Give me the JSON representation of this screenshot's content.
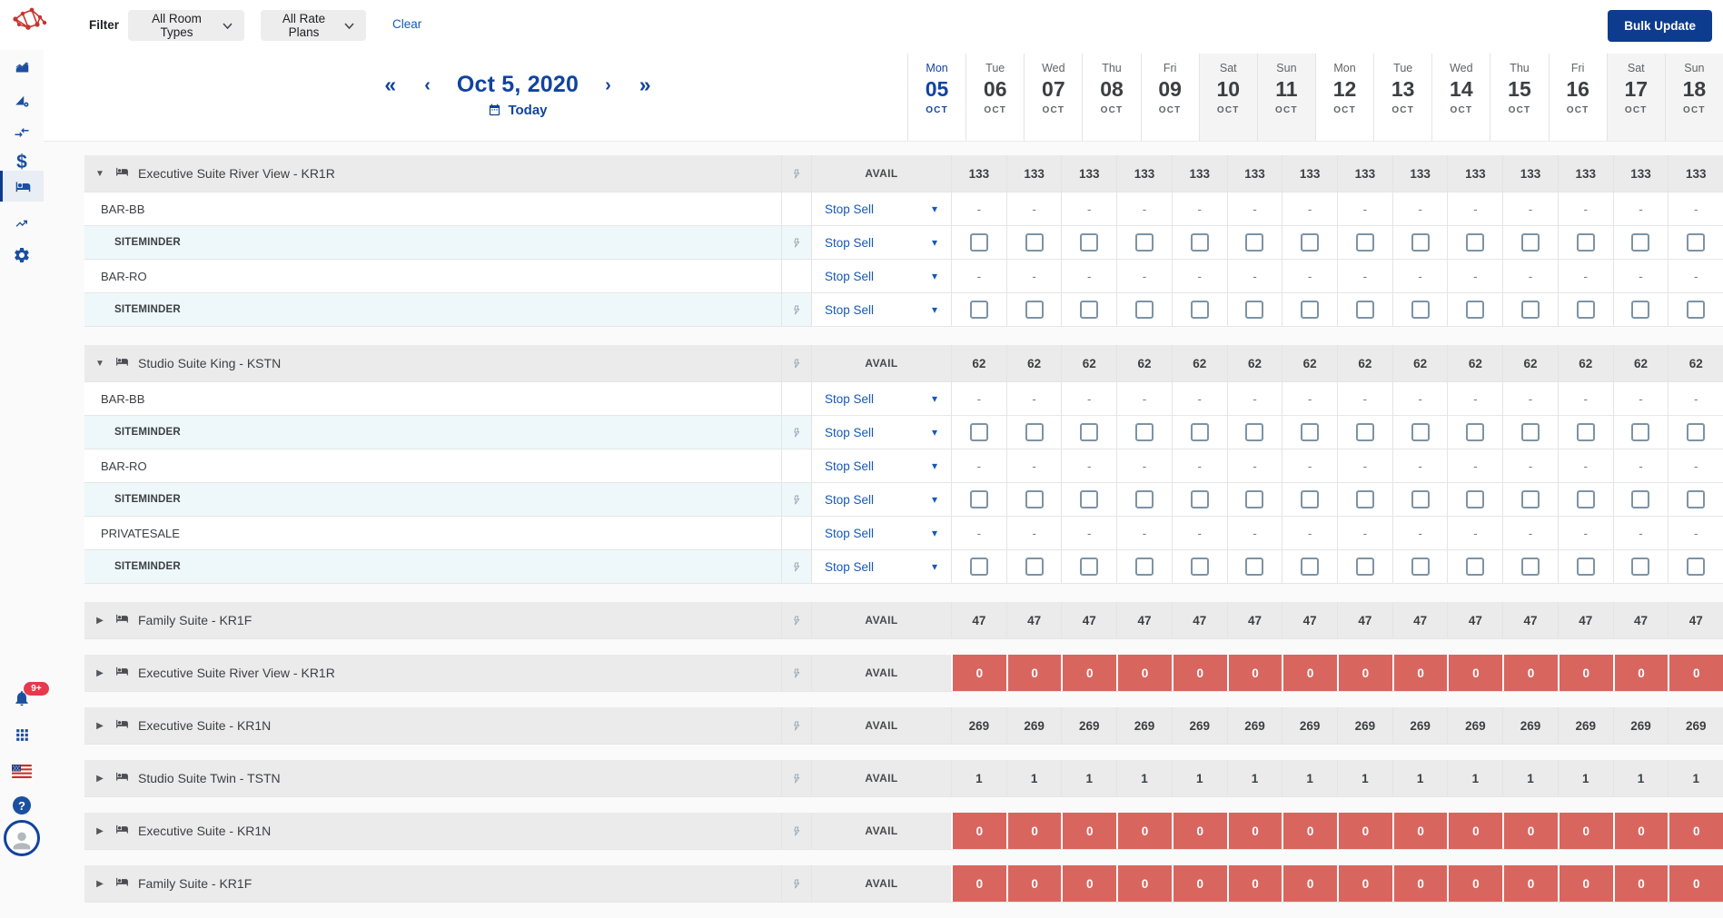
{
  "topbar": {
    "filter_label": "Filter",
    "room_types_filter": "All Room Types",
    "rate_plans_filter": "All Rate Plans",
    "clear_label": "Clear",
    "bulk_update_label": "Bulk Update"
  },
  "date_nav": {
    "current_date": "Oct 5, 2020",
    "today_label": "Today",
    "fast_back_glyph": "«",
    "back_glyph": "‹",
    "forward_glyph": "›",
    "fast_forward_glyph": "»"
  },
  "columns": {
    "avail_label": "AVAIL",
    "stop_sell_label": "Stop Sell",
    "empty_value": "-",
    "caret_down_glyph": "▾"
  },
  "dates": [
    {
      "dow": "Mon",
      "day": "05",
      "month": "OCT",
      "weekend": false,
      "selected": true
    },
    {
      "dow": "Tue",
      "day": "06",
      "month": "OCT",
      "weekend": false,
      "selected": false
    },
    {
      "dow": "Wed",
      "day": "07",
      "month": "OCT",
      "weekend": false,
      "selected": false
    },
    {
      "dow": "Thu",
      "day": "08",
      "month": "OCT",
      "weekend": false,
      "selected": false
    },
    {
      "dow": "Fri",
      "day": "09",
      "month": "OCT",
      "weekend": false,
      "selected": false
    },
    {
      "dow": "Sat",
      "day": "10",
      "month": "OCT",
      "weekend": true,
      "selected": false
    },
    {
      "dow": "Sun",
      "day": "11",
      "month": "OCT",
      "weekend": true,
      "selected": false
    },
    {
      "dow": "Mon",
      "day": "12",
      "month": "OCT",
      "weekend": false,
      "selected": false
    },
    {
      "dow": "Tue",
      "day": "13",
      "month": "OCT",
      "weekend": false,
      "selected": false
    },
    {
      "dow": "Wed",
      "day": "14",
      "month": "OCT",
      "weekend": false,
      "selected": false
    },
    {
      "dow": "Thu",
      "day": "15",
      "month": "OCT",
      "weekend": false,
      "selected": false
    },
    {
      "dow": "Fri",
      "day": "16",
      "month": "OCT",
      "weekend": false,
      "selected": false
    },
    {
      "dow": "Sat",
      "day": "17",
      "month": "OCT",
      "weekend": true,
      "selected": false
    },
    {
      "dow": "Sun",
      "day": "18",
      "month": "OCT",
      "weekend": true,
      "selected": false
    }
  ],
  "groups": [
    {
      "name": "Executive Suite River View - KR1R",
      "expanded": true,
      "sold_out": false,
      "avail_values": [
        133,
        133,
        133,
        133,
        133,
        133,
        133,
        133,
        133,
        133,
        133,
        133,
        133,
        133
      ],
      "rate_plans": [
        {
          "name": "BAR-BB",
          "channels": [
            "SITEMINDER"
          ]
        },
        {
          "name": "BAR-RO",
          "channels": [
            "SITEMINDER"
          ]
        }
      ]
    },
    {
      "name": "Studio Suite King - KSTN",
      "expanded": true,
      "sold_out": false,
      "avail_values": [
        62,
        62,
        62,
        62,
        62,
        62,
        62,
        62,
        62,
        62,
        62,
        62,
        62,
        62
      ],
      "rate_plans": [
        {
          "name": "BAR-BB",
          "channels": [
            "SITEMINDER"
          ]
        },
        {
          "name": "BAR-RO",
          "channels": [
            "SITEMINDER"
          ]
        },
        {
          "name": "PRIVATESALE",
          "channels": [
            "SITEMINDER"
          ]
        }
      ]
    },
    {
      "name": "Family Suite - KR1F",
      "expanded": false,
      "sold_out": false,
      "avail_values": [
        47,
        47,
        47,
        47,
        47,
        47,
        47,
        47,
        47,
        47,
        47,
        47,
        47,
        47
      ],
      "rate_plans": []
    },
    {
      "name": "Executive Suite River View - KR1R",
      "expanded": false,
      "sold_out": true,
      "avail_values": [
        0,
        0,
        0,
        0,
        0,
        0,
        0,
        0,
        0,
        0,
        0,
        0,
        0,
        0
      ],
      "rate_plans": []
    },
    {
      "name": "Executive Suite - KR1N",
      "expanded": false,
      "sold_out": false,
      "avail_values": [
        269,
        269,
        269,
        269,
        269,
        269,
        269,
        269,
        269,
        269,
        269,
        269,
        269,
        269
      ],
      "rate_plans": []
    },
    {
      "name": "Studio Suite Twin - TSTN",
      "expanded": false,
      "sold_out": false,
      "avail_values": [
        1,
        1,
        1,
        1,
        1,
        1,
        1,
        1,
        1,
        1,
        1,
        1,
        1,
        1
      ],
      "rate_plans": []
    },
    {
      "name": "Executive Suite - KR1N",
      "expanded": false,
      "sold_out": true,
      "avail_values": [
        0,
        0,
        0,
        0,
        0,
        0,
        0,
        0,
        0,
        0,
        0,
        0,
        0,
        0
      ],
      "rate_plans": []
    },
    {
      "name": "Family Suite - KR1F",
      "expanded": false,
      "sold_out": true,
      "avail_values": [
        0,
        0,
        0,
        0,
        0,
        0,
        0,
        0,
        0,
        0,
        0,
        0,
        0,
        0
      ],
      "rate_plans": []
    }
  ],
  "sidebar": {
    "notifications_badge": "9+",
    "help_glyph": "?",
    "dollar_glyph": "$",
    "items_top": [
      "dashboard-chart",
      "rate-analytics",
      "channel-sync",
      "pricing",
      "inventory-calendar",
      "trends",
      "settings"
    ],
    "items_bottom": [
      "notifications",
      "apps",
      "language-us",
      "help",
      "user-account"
    ],
    "active_item": "inventory-calendar"
  },
  "colors": {
    "accent_blue": "#11439f",
    "link_blue": "#1658b8",
    "icon_blue": "#1b4fa0",
    "button_navy": "#0d3c8e",
    "sold_out_red": "#d9655f",
    "badge_red": "#e6394e",
    "channel_row_tint": "#eef8fb",
    "group_header_bg": "#ebebeb",
    "weekend_bg": "#f4f4f5",
    "border_gray": "#e4e4e4",
    "text_dark": "#3c4043",
    "text_gray": "#5f6368",
    "checkbox_border": "#7d93a4",
    "logo_red": "#c6342e"
  }
}
